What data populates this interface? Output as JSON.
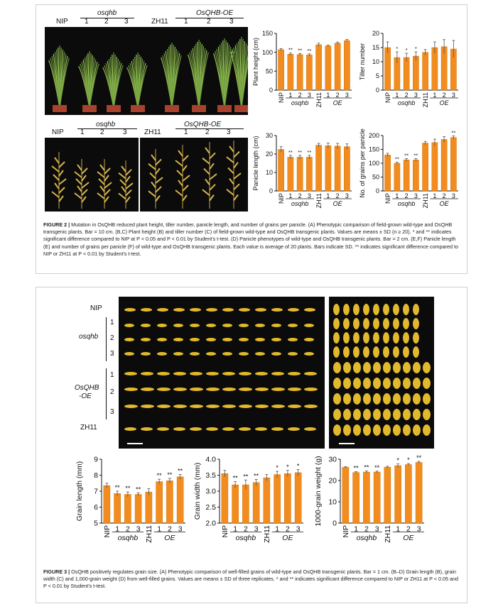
{
  "fig2": {
    "panel_a": {
      "labels": [
        "NIP",
        "1",
        "2",
        "3",
        "ZH11",
        "1",
        "2",
        "3"
      ],
      "group1": "osqhb",
      "group2": "OsQHB-OE"
    },
    "panel_d": {
      "labels": [
        "NIP",
        "1",
        "2",
        "3",
        "ZH11",
        "1",
        "2",
        "3"
      ],
      "group1": "osqhb",
      "group2": "OsQHB-OE"
    },
    "caption": {
      "title": "FIGURE 2 |",
      "text": "Mutation in OsQHB reduced plant height, tiller number, panicle length, and number of grains per panicle. (A) Phenotypic comparison of field-grown wild-type and OsQHB transgenic plants. Bar = 10 cm. (B,C) Plant height (B) and tiller number (C) of field-grown wild-type and OsQHB transgenic plants. Values are means ± SD (n ≥ 20). * and ** indicates significant difference compared to NIP at P < 0.05 and P < 0.01 by Student's t-test. (D) Panicle phenotypes of wild-type and OsQHB transgenic plants. Bar = 2 cm. (E,F) Panicle length (E) and number of grains per panicle (F) of wild-type and OsQHB transgenic plants. Each value is average of 20 plants. Bars indicate SD. ** indicates significant difference compared to NIP or ZH11 at P < 0.01 by Student's t-test."
    }
  },
  "fig3": {
    "rows": [
      "NIP",
      "osqhb",
      "1",
      "2",
      "3",
      "OsQHB",
      "-OE",
      "1",
      "2",
      "3",
      "ZH11"
    ],
    "caption": {
      "title": "FIGURE 3 |",
      "text": "OsQHB positively regulates grain size. (A) Phenotypic comparison of well-filled grains of wild-type and OsQHB transgenic plants. Bar = 1 cm. (B–D) Grain length (B), grain width (C) and 1,000-grain weight (D) from well-filled grains. Values are means ± SD of three replicates. * and ** indicates significant difference compared to NIP or ZH11 at P < 0.05 and P < 0.01 by Student's t-test."
    }
  },
  "chart_data": [
    {
      "id": "B",
      "type": "bar",
      "ylabel": "Plant height (cm)",
      "ylim": [
        0,
        150
      ],
      "yticks": [
        0,
        50,
        100,
        150
      ],
      "categories": [
        "NIP",
        "1",
        "2",
        "3",
        "ZH11",
        "1",
        "2",
        "3"
      ],
      "values": [
        107,
        95,
        94,
        93,
        120,
        117,
        124,
        131
      ],
      "err": [
        3,
        3,
        3,
        3,
        4,
        2,
        3,
        3
      ],
      "sig": [
        "",
        "**",
        "**",
        "**",
        "",
        "",
        "",
        ""
      ],
      "group1": "osqhb",
      "group2": "OE"
    },
    {
      "id": "C",
      "type": "bar",
      "ylabel": "Tiller number",
      "ylim": [
        0,
        20
      ],
      "yticks": [
        0,
        5,
        10,
        15,
        20
      ],
      "categories": [
        "NIP",
        "1",
        "2",
        "3",
        "ZH11",
        "1",
        "2",
        "3"
      ],
      "values": [
        15,
        11.5,
        11.5,
        12,
        13.3,
        15,
        15.3,
        14.5
      ],
      "err": [
        2,
        2,
        1.5,
        1.5,
        1,
        2,
        2.5,
        3
      ],
      "sig": [
        "",
        "*",
        "*",
        "*",
        "",
        "",
        "",
        ""
      ],
      "group1": "osqhb",
      "group2": "OE"
    },
    {
      "id": "E",
      "type": "bar",
      "ylabel": "Panicle length (cm)",
      "ylim": [
        0,
        30
      ],
      "yticks": [
        0,
        10,
        20,
        30
      ],
      "categories": [
        "NIP",
        "1",
        "2",
        "3",
        "ZH11",
        "1",
        "2",
        "3"
      ],
      "values": [
        22.5,
        18.3,
        18.3,
        18.3,
        24.8,
        24.5,
        24.3,
        24
      ],
      "err": [
        1.5,
        1,
        1,
        1,
        1,
        1.5,
        1.5,
        1.5
      ],
      "sig": [
        "",
        "**",
        "**",
        "**",
        "",
        "",
        "",
        ""
      ],
      "group1": "osqhb",
      "group2": "OE"
    },
    {
      "id": "F",
      "type": "bar",
      "ylabel": "No. of grains per panicle",
      "ylim": [
        0,
        200
      ],
      "yticks": [
        0,
        50,
        100,
        150,
        200
      ],
      "categories": [
        "NIP",
        "1",
        "2",
        "3",
        "ZH11",
        "1",
        "2",
        "3"
      ],
      "values": [
        130,
        100,
        112,
        112,
        173,
        175,
        186,
        193
      ],
      "err": [
        6,
        4,
        5,
        5,
        6,
        12,
        10,
        6
      ],
      "sig": [
        "",
        "**",
        "**",
        "**",
        "",
        "",
        "",
        "**"
      ],
      "group1": "osqhb",
      "group2": "OE"
    },
    {
      "id": "G",
      "type": "bar",
      "ylabel": "Grain length (mm)",
      "ylim": [
        5,
        9
      ],
      "yticks": [
        5,
        6,
        7,
        8,
        9
      ],
      "categories": [
        "NIP",
        "1",
        "2",
        "3",
        "ZH11",
        "1",
        "2",
        "3"
      ],
      "values": [
        7.35,
        6.85,
        6.8,
        6.8,
        6.95,
        7.6,
        7.65,
        7.9
      ],
      "err": [
        0.15,
        0.15,
        0.15,
        0.1,
        0.2,
        0.15,
        0.15,
        0.15
      ],
      "sig": [
        "",
        "**",
        "**",
        "**",
        "",
        "**",
        "**",
        "**"
      ],
      "group1": "osqhb",
      "group2": "OE"
    },
    {
      "id": "H",
      "type": "bar",
      "ylabel": "Grain width (mm)",
      "ylim": [
        2,
        4
      ],
      "yticks": [
        "2.0",
        "2.5",
        "3.0",
        "3.5",
        "4.0"
      ],
      "categories": [
        "NIP",
        "1",
        "2",
        "3",
        "ZH11",
        "1",
        "2",
        "3"
      ],
      "values": [
        3.55,
        3.2,
        3.2,
        3.27,
        3.42,
        3.52,
        3.55,
        3.58
      ],
      "err": [
        0.1,
        0.1,
        0.15,
        0.1,
        0.1,
        0.1,
        0.1,
        0.1
      ],
      "sig": [
        "",
        "**",
        "**",
        "**",
        "",
        "*",
        "*",
        "*"
      ],
      "group1": "osqhb",
      "group2": "OE"
    },
    {
      "id": "I",
      "type": "bar",
      "ylabel": "1000-grain weight (g)",
      "ylim": [
        0,
        30
      ],
      "yticks": [
        0,
        10,
        20,
        30
      ],
      "categories": [
        "NIP",
        "1",
        "2",
        "3",
        "ZH11",
        "1",
        "2",
        "3"
      ],
      "values": [
        26.2,
        23.8,
        24,
        24,
        26.3,
        27,
        27.5,
        28.5
      ],
      "err": [
        0.3,
        0.4,
        0.5,
        0.4,
        0.4,
        0.8,
        0.5,
        0.5
      ],
      "sig": [
        "",
        "**",
        "**",
        "**",
        "",
        "*",
        "*",
        "**"
      ],
      "group1": "osqhb",
      "group2": "OE"
    }
  ]
}
